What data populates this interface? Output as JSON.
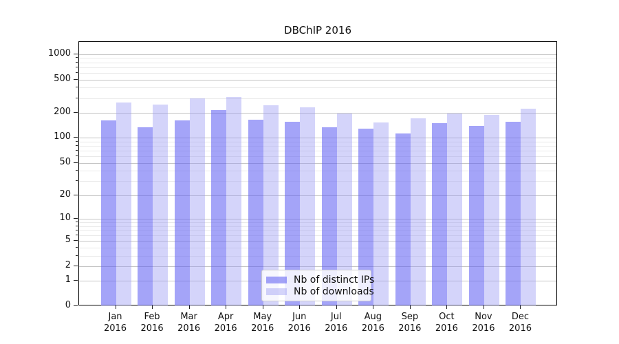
{
  "chart_data": {
    "type": "bar",
    "title": "DBChIP 2016",
    "categories": [
      "Jan",
      "Feb",
      "Mar",
      "Apr",
      "May",
      "Jun",
      "Jul",
      "Aug",
      "Sep",
      "Oct",
      "Nov",
      "Dec"
    ],
    "year_label": "2016",
    "series": [
      {
        "key": "distinct-ips",
        "name": "Nb of distinct IPs",
        "color": "#a5a5f6",
        "color_rgba": "rgba(95,95,242,0.57)",
        "values": [
          163,
          135,
          163,
          215,
          166,
          157,
          133,
          128,
          112,
          150,
          140,
          155
        ]
      },
      {
        "key": "downloads",
        "name": "Nb of downloads",
        "color": "#d7d7fa",
        "color_rgba": "rgba(150,150,243,0.41)",
        "values": [
          265,
          250,
          300,
          310,
          245,
          232,
          196,
          152,
          172,
          196,
          188,
          222
        ]
      }
    ],
    "yticks": [
      0,
      1,
      2,
      5,
      10,
      20,
      50,
      100,
      200,
      500,
      1000
    ],
    "ylim": [
      0,
      1400
    ],
    "scale": "log1p",
    "grid": true,
    "legend_position": "lower-center"
  }
}
